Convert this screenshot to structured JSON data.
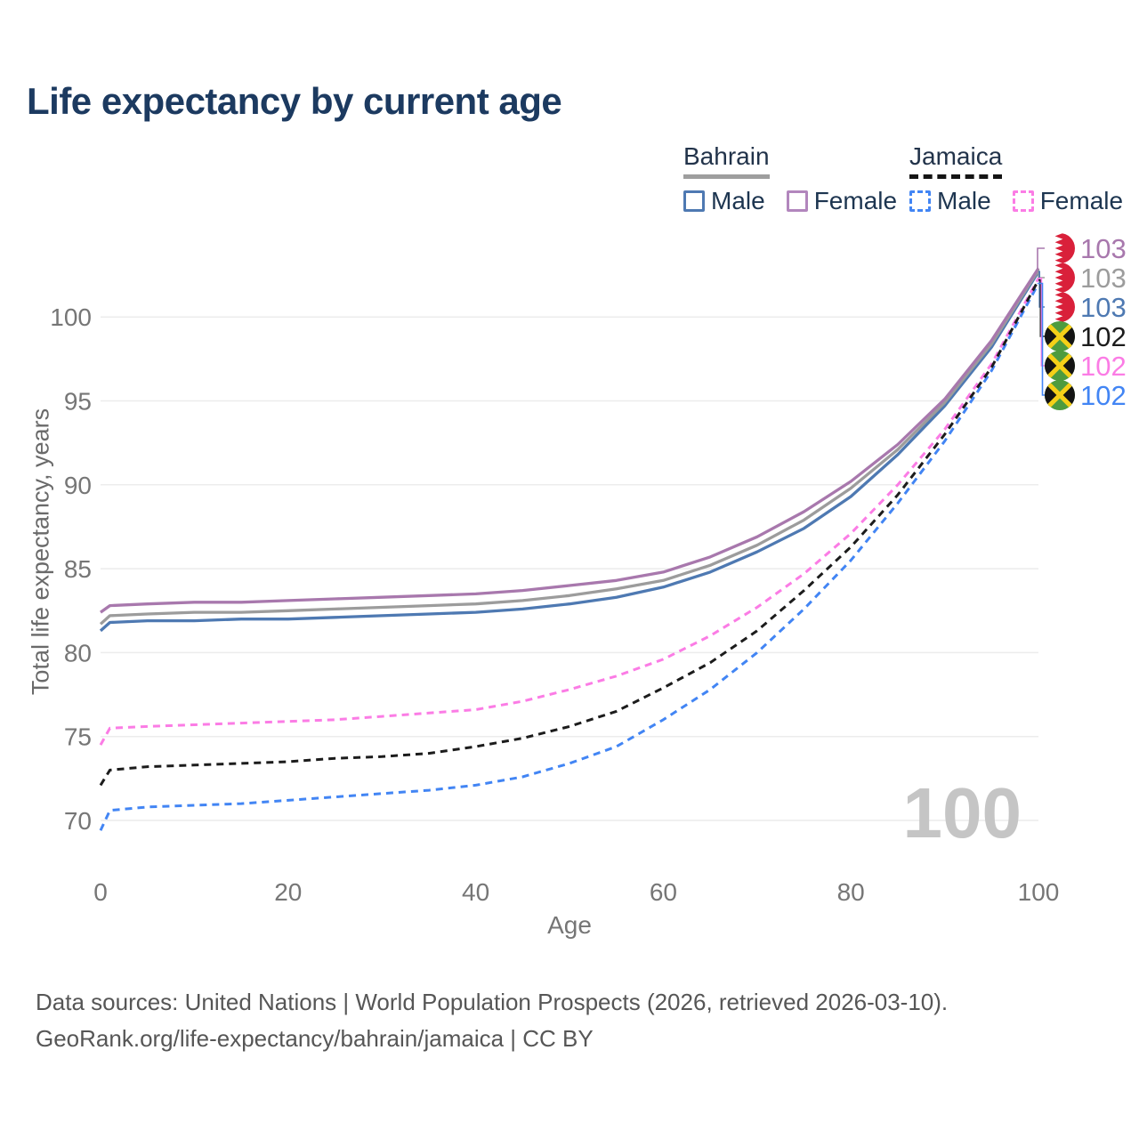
{
  "title": "Life expectancy by current age",
  "legend": {
    "groups": [
      {
        "name": "Bahrain",
        "underline_style": "solid",
        "underline_color": "#9e9e9e",
        "items": [
          {
            "label": "Male",
            "color": "#4e79b2",
            "dashed": false
          },
          {
            "label": "Female",
            "color": "#b286bd",
            "dashed": false
          }
        ]
      },
      {
        "name": "Jamaica",
        "underline_style": "dashed",
        "underline_color": "#141414",
        "items": [
          {
            "label": "Male",
            "color": "#4285f4",
            "dashed": true
          },
          {
            "label": "Female",
            "color": "#fb7ce5",
            "dashed": true
          }
        ]
      }
    ]
  },
  "chart_data": {
    "type": "line",
    "title": "Life expectancy by current age",
    "xlabel": "Age",
    "ylabel": "Total life expectancy, years",
    "xticks": [
      0,
      20,
      40,
      60,
      80,
      100
    ],
    "yticks": [
      70,
      75,
      80,
      85,
      90,
      95,
      100
    ],
    "xlim": [
      0,
      100
    ],
    "ylim": [
      69,
      103.5
    ],
    "grid": "horizontal",
    "watermark": "100",
    "x": [
      0,
      1,
      5,
      10,
      15,
      20,
      25,
      30,
      35,
      40,
      45,
      50,
      55,
      60,
      65,
      70,
      75,
      80,
      85,
      90,
      95,
      100
    ],
    "series": [
      {
        "name": "Bahrain Female",
        "country": "Bahrain",
        "sex": "Female",
        "color": "#a878ad",
        "style": "solid",
        "flag": "bahrain",
        "end_label": "103",
        "values": [
          82.4,
          82.8,
          82.9,
          83.0,
          83.0,
          83.1,
          83.2,
          83.3,
          83.4,
          83.5,
          83.7,
          84.0,
          84.3,
          84.8,
          85.7,
          86.9,
          88.4,
          90.2,
          92.4,
          95.1,
          98.6,
          102.9
        ]
      },
      {
        "name": "Bahrain Both sexes",
        "country": "Bahrain",
        "sex": "Both",
        "color": "#9c9c9c",
        "style": "solid",
        "flag": "bahrain",
        "end_label": "103",
        "values": [
          81.7,
          82.2,
          82.3,
          82.4,
          82.4,
          82.5,
          82.6,
          82.7,
          82.8,
          82.9,
          83.1,
          83.4,
          83.8,
          84.3,
          85.2,
          86.4,
          87.9,
          89.8,
          92.1,
          94.9,
          98.4,
          102.8
        ]
      },
      {
        "name": "Bahrain Male",
        "country": "Bahrain",
        "sex": "Male",
        "color": "#4e79b2",
        "style": "solid",
        "flag": "bahrain",
        "end_label": "103",
        "values": [
          81.3,
          81.8,
          81.9,
          81.9,
          82.0,
          82.0,
          82.1,
          82.2,
          82.3,
          82.4,
          82.6,
          82.9,
          83.3,
          83.9,
          84.8,
          86.0,
          87.4,
          89.3,
          91.8,
          94.7,
          98.2,
          102.7
        ]
      },
      {
        "name": "Jamaica Both sexes",
        "country": "Jamaica",
        "sex": "Both",
        "color": "#1c1c1c",
        "style": "dashed",
        "flag": "jamaica",
        "end_label": "102",
        "values": [
          72.1,
          73.0,
          73.2,
          73.3,
          73.4,
          73.5,
          73.7,
          73.8,
          74.0,
          74.4,
          74.9,
          75.6,
          76.5,
          77.9,
          79.4,
          81.3,
          83.7,
          86.3,
          89.4,
          93.0,
          97.0,
          102.2
        ]
      },
      {
        "name": "Jamaica Female",
        "country": "Jamaica",
        "sex": "Female",
        "color": "#fb7ce5",
        "style": "dashed",
        "flag": "jamaica",
        "end_label": "102",
        "values": [
          74.5,
          75.5,
          75.6,
          75.7,
          75.8,
          75.9,
          76.0,
          76.2,
          76.4,
          76.6,
          77.1,
          77.8,
          78.6,
          79.6,
          81.0,
          82.7,
          84.7,
          87.1,
          90.0,
          93.3,
          97.2,
          102.3
        ]
      },
      {
        "name": "Jamaica Male",
        "country": "Jamaica",
        "sex": "Male",
        "color": "#4285f4",
        "style": "dashed",
        "flag": "jamaica",
        "end_label": "102",
        "values": [
          69.4,
          70.6,
          70.8,
          70.9,
          71.0,
          71.2,
          71.4,
          71.6,
          71.8,
          72.1,
          72.6,
          73.4,
          74.4,
          76.0,
          77.8,
          80.0,
          82.6,
          85.5,
          88.9,
          92.6,
          96.8,
          102.0
        ]
      }
    ],
    "flag_colors": {
      "bahrain": {
        "red": "#d9203a",
        "white": "#ffffff"
      },
      "jamaica": {
        "green": "#4e9b3f",
        "black": "#141414",
        "gold": "#f5d018"
      }
    },
    "gridline_color": "#ececec",
    "tick_color": "#767676",
    "watermark_color": "#c5c5c5"
  },
  "footer": {
    "line1": "Data sources: United Nations | World Population Prospects (2026, retrieved 2026-03-10).",
    "line2": "GeoRank.org/life-expectancy/bahrain/jamaica | CC BY"
  }
}
